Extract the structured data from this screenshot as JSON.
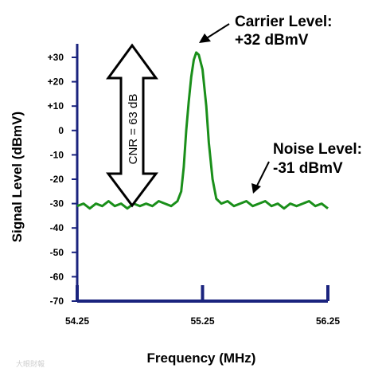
{
  "chart_data": {
    "type": "line",
    "xlabel": "Frequency (MHz)",
    "ylabel": "Signal Level (dBmV)",
    "xlim": [
      54.25,
      56.25
    ],
    "ylim": [
      -70,
      32
    ],
    "x_ticks": [
      {
        "value": 54.25,
        "label": "54.25"
      },
      {
        "value": 55.25,
        "label": "55.25"
      },
      {
        "value": 56.25,
        "label": "56.25"
      }
    ],
    "y_ticks": [
      {
        "value": 30,
        "label": "+30"
      },
      {
        "value": 20,
        "label": "+20"
      },
      {
        "value": 10,
        "label": "+10"
      },
      {
        "value": 0,
        "label": "0"
      },
      {
        "value": -10,
        "label": "-10"
      },
      {
        "value": -20,
        "label": "-20"
      },
      {
        "value": -30,
        "label": "-30"
      },
      {
        "value": -40,
        "label": "-40"
      },
      {
        "value": -50,
        "label": "-50"
      },
      {
        "value": -60,
        "label": "-60"
      },
      {
        "value": -70,
        "label": "-70"
      }
    ],
    "series": [
      {
        "color": "#1a8f1a",
        "x": [
          54.25,
          54.3,
          54.35,
          54.4,
          54.45,
          54.5,
          54.55,
          54.6,
          54.65,
          54.7,
          54.75,
          54.8,
          54.85,
          54.9,
          54.95,
          55.0,
          55.05,
          55.08,
          55.1,
          55.12,
          55.14,
          55.16,
          55.18,
          55.2,
          55.22,
          55.25,
          55.28,
          55.3,
          55.33,
          55.36,
          55.4,
          55.45,
          55.5,
          55.55,
          55.6,
          55.65,
          55.7,
          55.75,
          55.8,
          55.85,
          55.9,
          55.95,
          56.0,
          56.05,
          56.1,
          56.15,
          56.2,
          56.25
        ],
        "y": [
          -31,
          -30,
          -32,
          -30,
          -31,
          -29,
          -31,
          -30,
          -32,
          -30,
          -31,
          -30,
          -31,
          -29,
          -30,
          -31,
          -29,
          -25,
          -15,
          0,
          12,
          22,
          29,
          32,
          31,
          25,
          10,
          -5,
          -20,
          -28,
          -30,
          -29,
          -31,
          -30,
          -29,
          -31,
          -30,
          -29,
          -31,
          -30,
          -32,
          -30,
          -31,
          -30,
          -29,
          -31,
          -30,
          -32
        ]
      }
    ],
    "annotations": {
      "carrier": {
        "line1": "Carrier Level:",
        "line2": "+32 dBmV"
      },
      "noise": {
        "line1": "Noise Level:",
        "line2": "-31 dBmV"
      },
      "cnr": {
        "label": "CNR = 63 dB"
      }
    },
    "watermark": "大眼財報"
  }
}
